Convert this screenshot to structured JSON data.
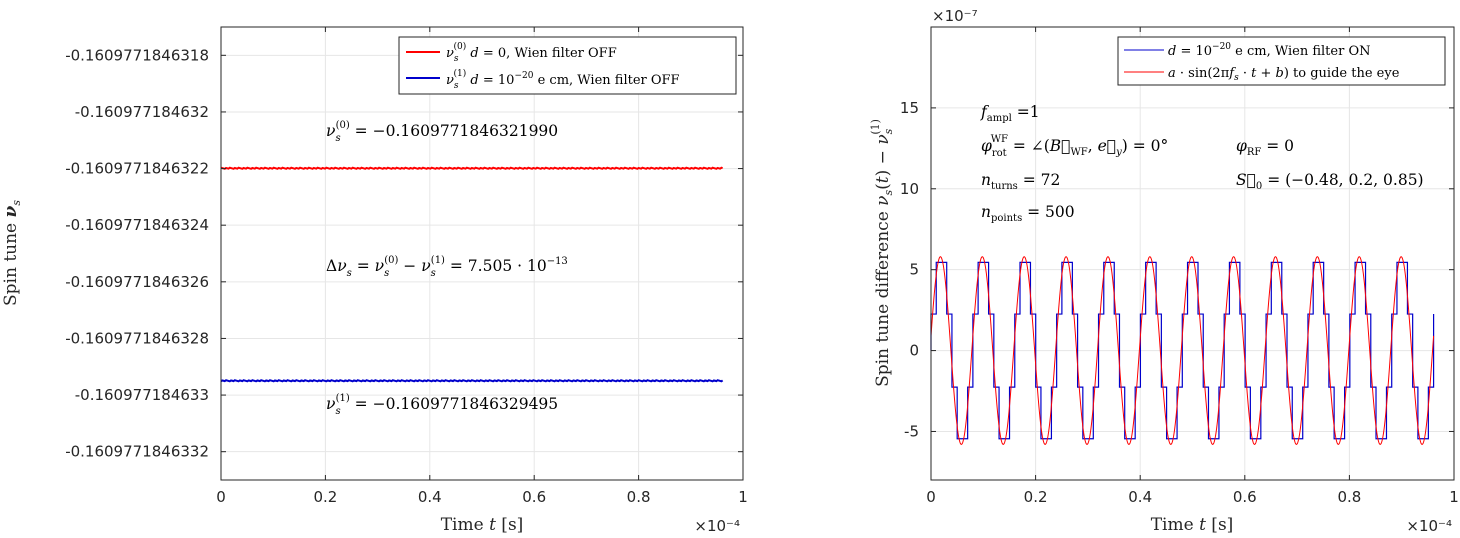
{
  "chart_data": [
    {
      "type": "line",
      "title": "",
      "xlabel": "Time t [s]",
      "ylabel": "Spin tune ν_s",
      "x_multiplier": "×10⁻⁴",
      "xlim": [
        0,
        1
      ],
      "ylim": [
        -0.1609771846333,
        -0.1609771846317
      ],
      "x_ticks": [
        0,
        0.2,
        0.4,
        0.6,
        0.8,
        1
      ],
      "x_tick_labels": [
        "0",
        "0.2",
        "0.4",
        "0.6",
        "0.8",
        "1"
      ],
      "y_ticks": [
        -0.1609771846318,
        -0.160977184632,
        -0.1609771846322,
        -0.1609771846324,
        -0.1609771846326,
        -0.1609771846328,
        -0.160977184633,
        -0.1609771846332
      ],
      "y_tick_labels": [
        "-0.1609771846318",
        "-0.160977184632",
        "-0.1609771846322",
        "-0.1609771846324",
        "-0.1609771846326",
        "-0.1609771846328",
        "-0.160977184633",
        "-0.1609771846332"
      ],
      "grid": true,
      "legend_position": "top-right",
      "series": [
        {
          "name": "ν_s^(0) d = 0, Wien filter OFF",
          "color": "#ff0000",
          "x": [
            0,
            0.961
          ],
          "values": [
            -0.160977184632199,
            -0.160977184632199
          ]
        },
        {
          "name": "ν_s^(1) d = 10^-20 e cm, Wien filter OFF",
          "color": "#0000cc",
          "x": [
            0,
            0.961
          ],
          "values": [
            -0.1609771846329495,
            -0.1609771846329495
          ]
        }
      ],
      "legend": [
        {
          "sym": "ν",
          "sub": "s",
          "sup": "(0)",
          "rest": "  d = 0, Wien filter OFF"
        },
        {
          "sym": "ν",
          "sub": "s",
          "sup": "(1)",
          "rest": "  d = 10⁻²⁰ e cm, Wien filter OFF"
        }
      ],
      "annotations": {
        "nu0": "ν_s^(0) = −0.1609771846321990",
        "delta": "Δν_s = ν_s^(0) − ν_s^(1) = 7.505 · 10⁻¹³",
        "nu1": "ν_s^(1) = −0.1609771846329495"
      }
    },
    {
      "type": "line",
      "title": "",
      "xlabel": "Time t [s]",
      "ylabel": "Spin tune difference ν_s(t) − ν_s^(1)",
      "x_multiplier": "×10⁻⁴",
      "y_multiplier": "×10⁻⁷",
      "xlim": [
        0,
        1
      ],
      "ylim": [
        -8,
        20
      ],
      "x_ticks": [
        0,
        0.2,
        0.4,
        0.6,
        0.8,
        1
      ],
      "x_tick_labels": [
        "0",
        "0.2",
        "0.4",
        "0.6",
        "0.8",
        "1"
      ],
      "y_ticks": [
        -5,
        0,
        5,
        10,
        15
      ],
      "y_tick_labels": [
        "-5",
        "0",
        "5",
        "10",
        "15"
      ],
      "grid": true,
      "legend_position": "top-right",
      "series": [
        {
          "name": "d = 10^-20 e cm, Wien filter ON",
          "color": "#0000cc",
          "style": "stepped",
          "amplitude": 5.9,
          "cycles": 12,
          "x_end": 0.961,
          "n_points": 500,
          "levels_per_cycle": 8
        },
        {
          "name": "a · sin(2π f_s · t + b) to guide the eye",
          "color": "#ff0000",
          "style": "smooth",
          "amplitude": 5.8,
          "cycles": 12,
          "x_end": 0.961
        }
      ],
      "legend": [
        {
          "text": "d = 10⁻²⁰ e cm, Wien filter ON"
        },
        {
          "text": "a · sin(2π f_s · t + b) to guide the eye"
        }
      ],
      "annotations": {
        "fampl": "f_ampl =1",
        "phirot": "φ_rot^WF = ∠(B_WF, e_y) = 0°",
        "phirf": "φ_RF = 0",
        "nturns": "n_turns = 72",
        "s0": "S_0 = (−0.48, 0.2, 0.85)",
        "npoints": "n_points = 500"
      }
    }
  ]
}
